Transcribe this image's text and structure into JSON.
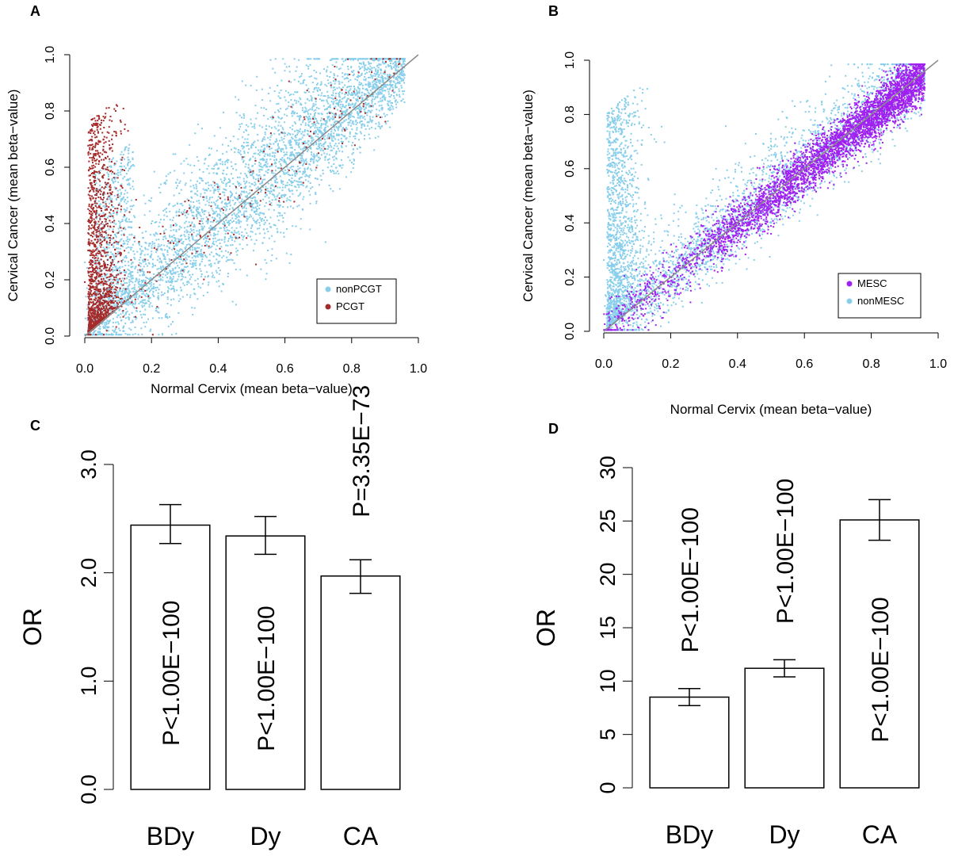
{
  "chart_data": [
    {
      "panel": "A",
      "type": "scatter",
      "xlabel": "Normal Cervix (mean beta−value)",
      "ylabel": "Cervical Cancer (mean beta−value)",
      "xlim": [
        0,
        1
      ],
      "ylim": [
        0,
        1
      ],
      "xticks": [
        "0.0",
        "0.2",
        "0.4",
        "0.6",
        "0.8",
        "1.0"
      ],
      "yticks": [
        "0.0",
        "0.2",
        "0.4",
        "0.6",
        "0.8",
        "1.0"
      ],
      "legend_position": "bottom-right",
      "diagonal": true,
      "series": [
        {
          "name": "nonPCGT",
          "color": "#87ceeb",
          "pattern": "dense cloud along diagonal, spread toward upper-left at low x"
        },
        {
          "name": "PCGT",
          "color": "#a52a2a",
          "pattern": "concentrated at low x (0-0.15) with y ranging 0-0.8, sparse elsewhere"
        }
      ]
    },
    {
      "panel": "B",
      "type": "scatter",
      "xlabel": "Normal Cervix (mean beta−value)",
      "ylabel": "Cervical Cancer (mean beta−value)",
      "xlim": [
        0,
        1
      ],
      "ylim": [
        0,
        1
      ],
      "xticks": [
        "0.0",
        "0.2",
        "0.4",
        "0.6",
        "0.8",
        "1.0"
      ],
      "yticks": [
        "0.0",
        "0.2",
        "0.4",
        "0.6",
        "0.8",
        "1.0"
      ],
      "legend_position": "bottom-right",
      "diagonal": true,
      "series": [
        {
          "name": "MESC",
          "color": "#a020f0",
          "pattern": "dense along diagonal, concentrated at high x (0.5-0.95)"
        },
        {
          "name": "nonMESC",
          "color": "#87ceeb",
          "pattern": "dense at low x (0-0.15) with y ranging 0-0.9, spread along diagonal"
        }
      ]
    },
    {
      "panel": "C",
      "type": "bar",
      "ylabel": "OR",
      "ylim": [
        0,
        3
      ],
      "yticks": [
        "0.0",
        "1.0",
        "2.0",
        "3.0"
      ],
      "ytick_values": [
        0,
        1,
        2,
        3
      ],
      "categories": [
        "BDy",
        "Dy",
        "CA"
      ],
      "values": [
        2.44,
        2.34,
        1.97
      ],
      "err_low": [
        2.27,
        2.17,
        1.81
      ],
      "err_high": [
        2.63,
        2.52,
        2.12
      ],
      "annotations": [
        "P<1.00E−100",
        "P<1.00E−100",
        "P=3.35E−73"
      ]
    },
    {
      "panel": "D",
      "type": "bar",
      "ylabel": "OR",
      "ylim": [
        0,
        30
      ],
      "yticks": [
        "0",
        "5",
        "10",
        "15",
        "20",
        "25",
        "30"
      ],
      "ytick_values": [
        0,
        5,
        10,
        15,
        20,
        25,
        30
      ],
      "categories": [
        "BDy",
        "Dy",
        "CA"
      ],
      "values": [
        8.5,
        11.2,
        25.1
      ],
      "err_low": [
        7.7,
        10.4,
        23.2
      ],
      "err_high": [
        9.3,
        12.0,
        27.0
      ],
      "annotations": [
        "P<1.00E−100",
        "P<1.00E−100",
        "P<1.00E−100"
      ]
    }
  ]
}
